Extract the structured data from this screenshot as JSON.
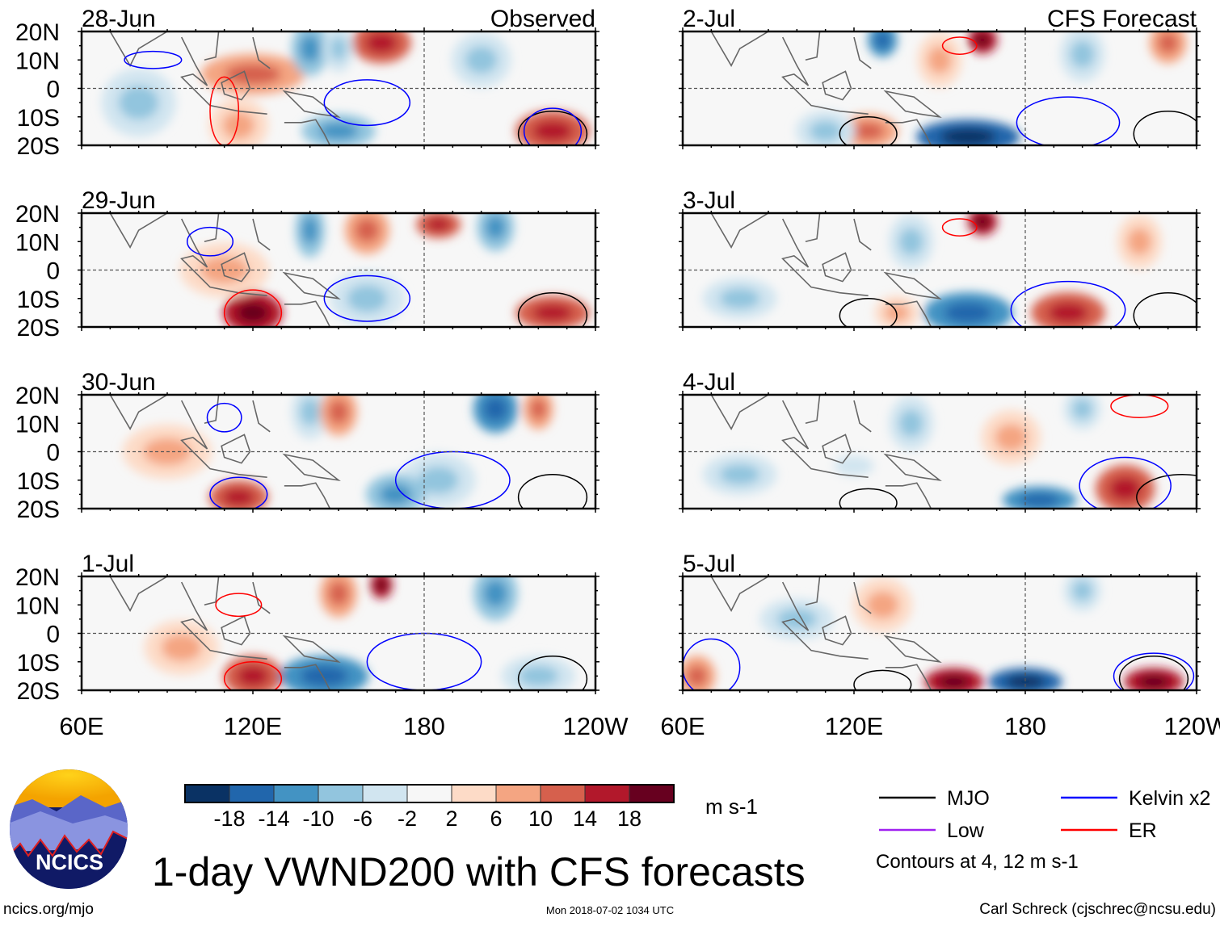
{
  "title": "1-day VWND200 with CFS forecasts",
  "panels": [
    {
      "date": "28-Jun",
      "label": "Observed"
    },
    {
      "date": "29-Jun",
      "label": ""
    },
    {
      "date": "30-Jun",
      "label": ""
    },
    {
      "date": "1-Jul",
      "label": ""
    },
    {
      "date": "2-Jul",
      "label": "CFS Forecast"
    },
    {
      "date": "3-Jul",
      "label": ""
    },
    {
      "date": "4-Jul",
      "label": ""
    },
    {
      "date": "5-Jul",
      "label": ""
    }
  ],
  "lat_labels": [
    "20N",
    "10N",
    "0",
    "10S",
    "20S"
  ],
  "lon_labels": [
    "60E",
    "120E",
    "180",
    "120W"
  ],
  "colorbar": {
    "colors": [
      "#0a3264",
      "#2166ac",
      "#4393c3",
      "#92c5de",
      "#d1e5f0",
      "#f7f7f7",
      "#fddbc7",
      "#f4a582",
      "#d6604d",
      "#b2182b",
      "#67001f"
    ],
    "labels": [
      "-18",
      "-14",
      "-10",
      "-6",
      "-2",
      "2",
      "6",
      "10",
      "14",
      "18"
    ],
    "units": "m s-1"
  },
  "legend": {
    "items": [
      {
        "name": "MJO",
        "color": "#000000"
      },
      {
        "name": "Kelvin x2",
        "color": "#0000ff"
      },
      {
        "name": "Low",
        "color": "#a020f0"
      },
      {
        "name": "ER",
        "color": "#ff0000"
      }
    ],
    "note": "Contours at 4, 12 m s-1"
  },
  "logo": {
    "text": "NCICS"
  },
  "footer": {
    "url": "ncics.org/mjo",
    "timestamp": "Mon 2018-07-02 1034 UTC",
    "credit": "Carl Schreck (cjschrec@ncsu.edu)"
  }
}
